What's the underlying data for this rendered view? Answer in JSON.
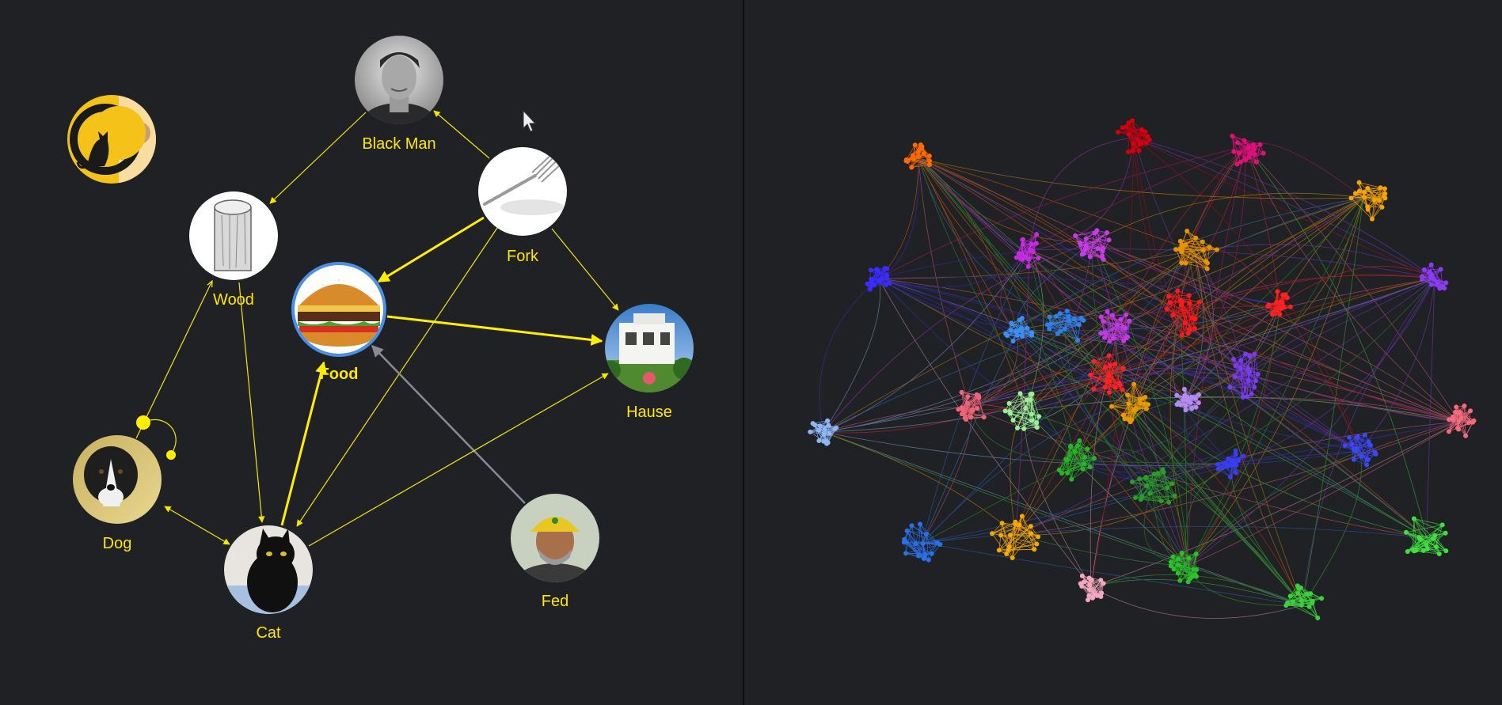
{
  "colors": {
    "background": "#202124",
    "divider": "#0f0f10",
    "edge": "#f5e600",
    "edge_highlight": "#ffee00",
    "edge_muted": "#8a8a94",
    "label": "#ffe600",
    "selected_ring": "#4a8ee6"
  },
  "graph": {
    "nodes": [
      {
        "id": "logo",
        "label": "",
        "icon": "cat-moon-logo",
        "selected": false
      },
      {
        "id": "blackman",
        "label": "Black Man",
        "icon": "person-portrait",
        "selected": false
      },
      {
        "id": "fork",
        "label": "Fork",
        "icon": "fork",
        "selected": false
      },
      {
        "id": "wood",
        "label": "Wood",
        "icon": "wood-log",
        "selected": false
      },
      {
        "id": "food",
        "label": "Food",
        "icon": "burger",
        "selected": true
      },
      {
        "id": "hause",
        "label": "Hause",
        "icon": "house",
        "selected": false
      },
      {
        "id": "dog",
        "label": "Dog",
        "icon": "dog",
        "selected": false
      },
      {
        "id": "cat",
        "label": "Cat",
        "icon": "black-cat",
        "selected": false
      },
      {
        "id": "fed",
        "label": "Fed",
        "icon": "person-with-cap",
        "selected": false
      }
    ],
    "edges": [
      {
        "from": "fork",
        "to": "blackman",
        "style": "normal"
      },
      {
        "from": "blackman",
        "to": "wood",
        "style": "normal"
      },
      {
        "from": "fork",
        "to": "food",
        "style": "highlight"
      },
      {
        "from": "fork",
        "to": "hause",
        "style": "normal"
      },
      {
        "from": "fork",
        "to": "cat",
        "style": "normal"
      },
      {
        "from": "food",
        "to": "hause",
        "style": "highlight"
      },
      {
        "from": "cat",
        "to": "food",
        "style": "highlight"
      },
      {
        "from": "fed",
        "to": "food",
        "style": "muted"
      },
      {
        "from": "cat",
        "to": "hause",
        "style": "normal"
      },
      {
        "from": "wood",
        "to": "cat",
        "style": "normal"
      },
      {
        "from": "dog",
        "to": "wood",
        "style": "normal"
      },
      {
        "from": "dog",
        "to": "cat",
        "style": "bidirectional"
      },
      {
        "from": "dog",
        "to": "dog",
        "style": "self-loop"
      }
    ]
  },
  "cluster_graph": {
    "clusters": [
      {
        "color": "#ff6a00"
      },
      {
        "color": "#d40010"
      },
      {
        "color": "#e0107a"
      },
      {
        "color": "#f5a300"
      },
      {
        "color": "#3a2cff"
      },
      {
        "color": "#c52be0"
      },
      {
        "color": "#c83ce8"
      },
      {
        "color": "#e69400"
      },
      {
        "color": "#8a3cf0"
      },
      {
        "color": "#3d8ef0"
      },
      {
        "color": "#2f80e8"
      },
      {
        "color": "#ff1a1a"
      },
      {
        "color": "#ff2020"
      },
      {
        "color": "#c23ae6"
      },
      {
        "color": "#ff2222"
      },
      {
        "color": "#7a3cf0"
      },
      {
        "color": "#8fb6f5"
      },
      {
        "color": "#f06478"
      },
      {
        "color": "#98f098"
      },
      {
        "color": "#e69a00"
      },
      {
        "color": "#b48cf0"
      },
      {
        "color": "#f56a7c"
      },
      {
        "color": "#28b428"
      },
      {
        "color": "#2c9c2c"
      },
      {
        "color": "#3a3cf0"
      },
      {
        "color": "#3a48f0"
      },
      {
        "color": "#2a70e8"
      },
      {
        "color": "#f5a800"
      },
      {
        "color": "#f4a8c0"
      },
      {
        "color": "#2cc02c"
      },
      {
        "color": "#3cd03c"
      },
      {
        "color": "#40e040"
      }
    ]
  }
}
